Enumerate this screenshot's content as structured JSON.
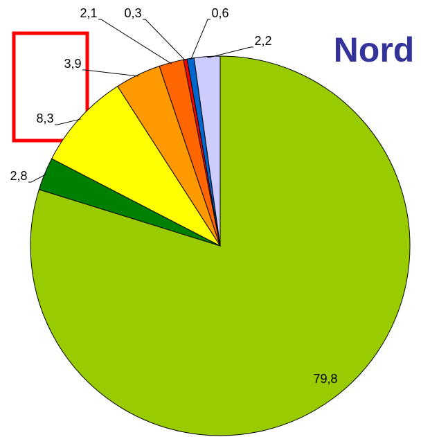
{
  "chart_data": {
    "type": "pie",
    "title": "Nord",
    "values": [
      79.8,
      2.8,
      8.3,
      3.9,
      2.1,
      0.3,
      0.6,
      2.2
    ],
    "value_labels": [
      "79,8",
      "2,8",
      "8,3",
      "3,9",
      "2,1",
      "0,3",
      "0,6",
      "2,2"
    ],
    "colors": [
      "#99cc00",
      "#008000",
      "#ffff00",
      "#ff9900",
      "#ff6600",
      "#ff0000",
      "#0066cc",
      "#ccccff"
    ]
  }
}
